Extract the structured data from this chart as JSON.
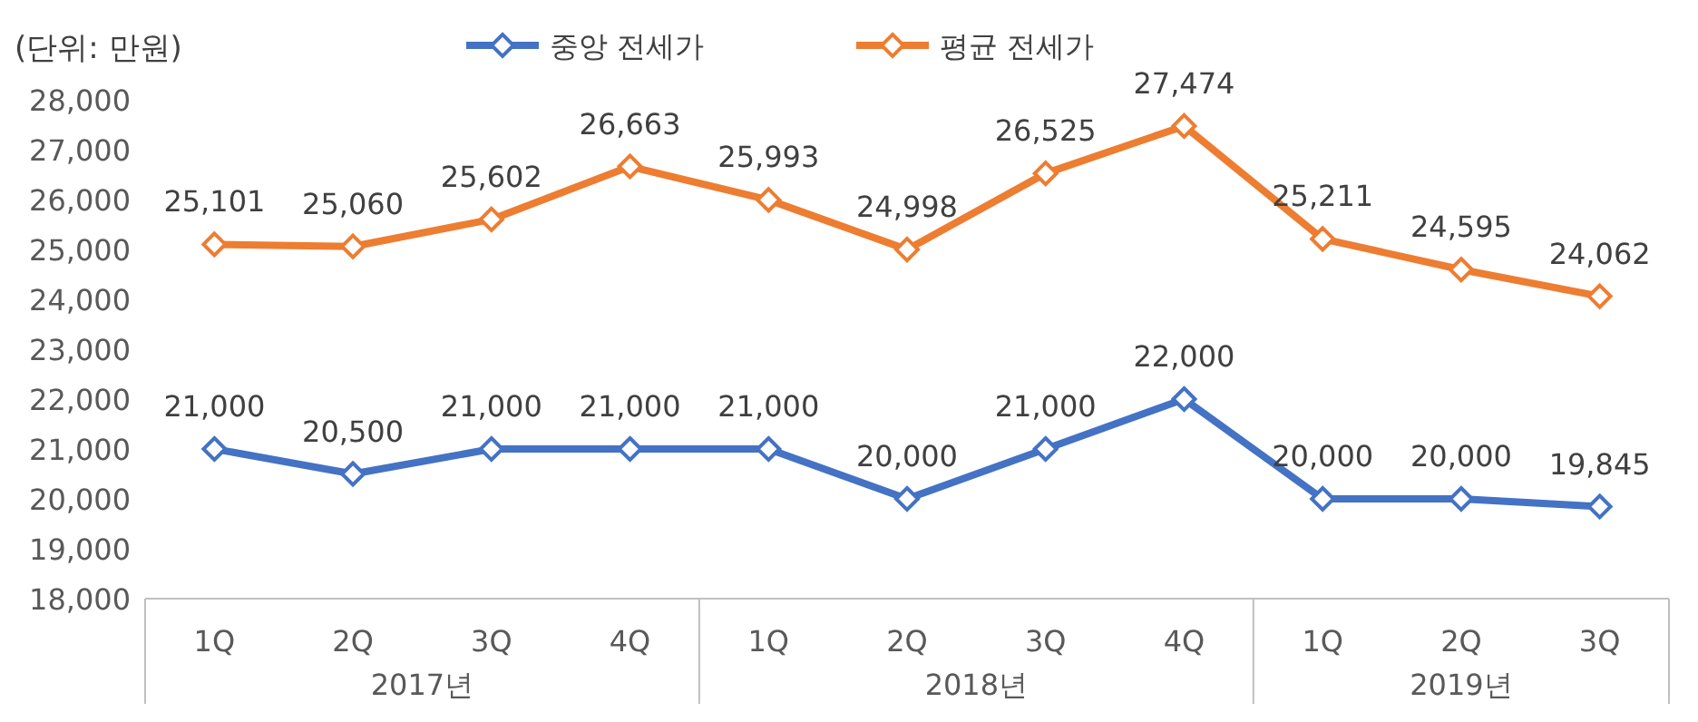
{
  "chart_data": {
    "type": "line",
    "title": "(단위: 만원)",
    "categories": [
      "1Q",
      "2Q",
      "3Q",
      "4Q",
      "1Q",
      "2Q",
      "3Q",
      "4Q",
      "1Q",
      "2Q",
      "3Q"
    ],
    "series": [
      {
        "name": "중앙 전세가",
        "color": "#4472c4",
        "values": [
          21000,
          20500,
          21000,
          21000,
          21000,
          20000,
          21000,
          22000,
          20000,
          20000,
          19845
        ],
        "value_labels": [
          "21,000",
          "20,500",
          "21,000",
          "21,000",
          "21,000",
          "20,000",
          "21,000",
          "22,000",
          "20,000",
          "20,000",
          "19,845"
        ]
      },
      {
        "name": "평균 전세가",
        "color": "#ed7d31",
        "values": [
          25101,
          25060,
          25602,
          26663,
          25993,
          24998,
          26525,
          27474,
          25211,
          24595,
          24062
        ],
        "value_labels": [
          "25,101",
          "25,060",
          "25,602",
          "26,663",
          "25,993",
          "24,998",
          "26,525",
          "27,474",
          "25,211",
          "24,595",
          "24,062"
        ]
      }
    ],
    "annotations": [
      "2017년",
      "2018년",
      "2019년"
    ],
    "ylim": [
      18000,
      28000
    ],
    "yticks": [
      {
        "value": 18000,
        "label": "18,000"
      },
      {
        "value": 19000,
        "label": "19,000"
      },
      {
        "value": 20000,
        "label": "20,000"
      },
      {
        "value": 21000,
        "label": "21,000"
      },
      {
        "value": 22000,
        "label": "22,000"
      },
      {
        "value": 23000,
        "label": "23,000"
      },
      {
        "value": 24000,
        "label": "24,000"
      },
      {
        "value": 25000,
        "label": "25,000"
      },
      {
        "value": 26000,
        "label": "26,000"
      },
      {
        "value": 27000,
        "label": "27,000"
      },
      {
        "value": 28000,
        "label": "28,000"
      }
    ],
    "grid": false,
    "legend": "top",
    "marker": "diamond",
    "line_style": "solid"
  }
}
